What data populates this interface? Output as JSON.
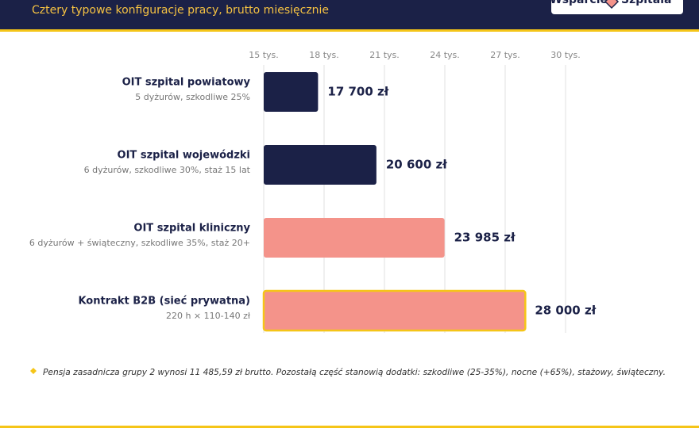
{
  "header": {
    "subtitle": "Cztery typowe konfiguracje pracy, brutto miesięcznie",
    "logo": [
      "Wsparcie",
      "Szpitala"
    ]
  },
  "chart_data": {
    "type": "barh",
    "categories": [
      "OIT szpital powiatowy",
      "OIT szpital wojewódzki",
      "OIT szpital kliniczny",
      "Kontrakt B2B (sieć prywatna)"
    ],
    "descriptions": [
      "5 dyżurów, szkodliwe 25%",
      "6 dyżurów, szkodliwe 30%, staż 15 lat",
      "6 dyżurów + świąteczny, szkodliwe 35%, staż 20+",
      "220 h × 110-140 zł"
    ],
    "values": [
      17700,
      20600,
      23985,
      28000
    ],
    "value_labels": [
      "17 700 zł",
      "20 600 zł",
      "23 985 zł",
      "28 000 zł"
    ],
    "colors": [
      "#1b2147",
      "#1b2147",
      "#f4938a",
      "#f4938a"
    ],
    "highlight": 3,
    "highlight_color": "#f5c518",
    "xlim": [
      15000,
      30000
    ],
    "xticks": [
      {
        "value": 15000,
        "label": "15 tys."
      },
      {
        "value": 18000,
        "label": "18 tys."
      },
      {
        "value": 21000,
        "label": "21 tys."
      },
      {
        "value": 24000,
        "label": "24 tys."
      },
      {
        "value": 27000,
        "label": "27 tys."
      },
      {
        "value": 30000,
        "label": "30 tys."
      }
    ],
    "grid": true
  },
  "footnote": "Pensja zasadnicza grupy 2 wynosi 11 485,59 zł brutto. Pozostałą część stanowią dodatki: szkodliwe (25-35%), nocne (+65%), stażowy, świąteczny."
}
